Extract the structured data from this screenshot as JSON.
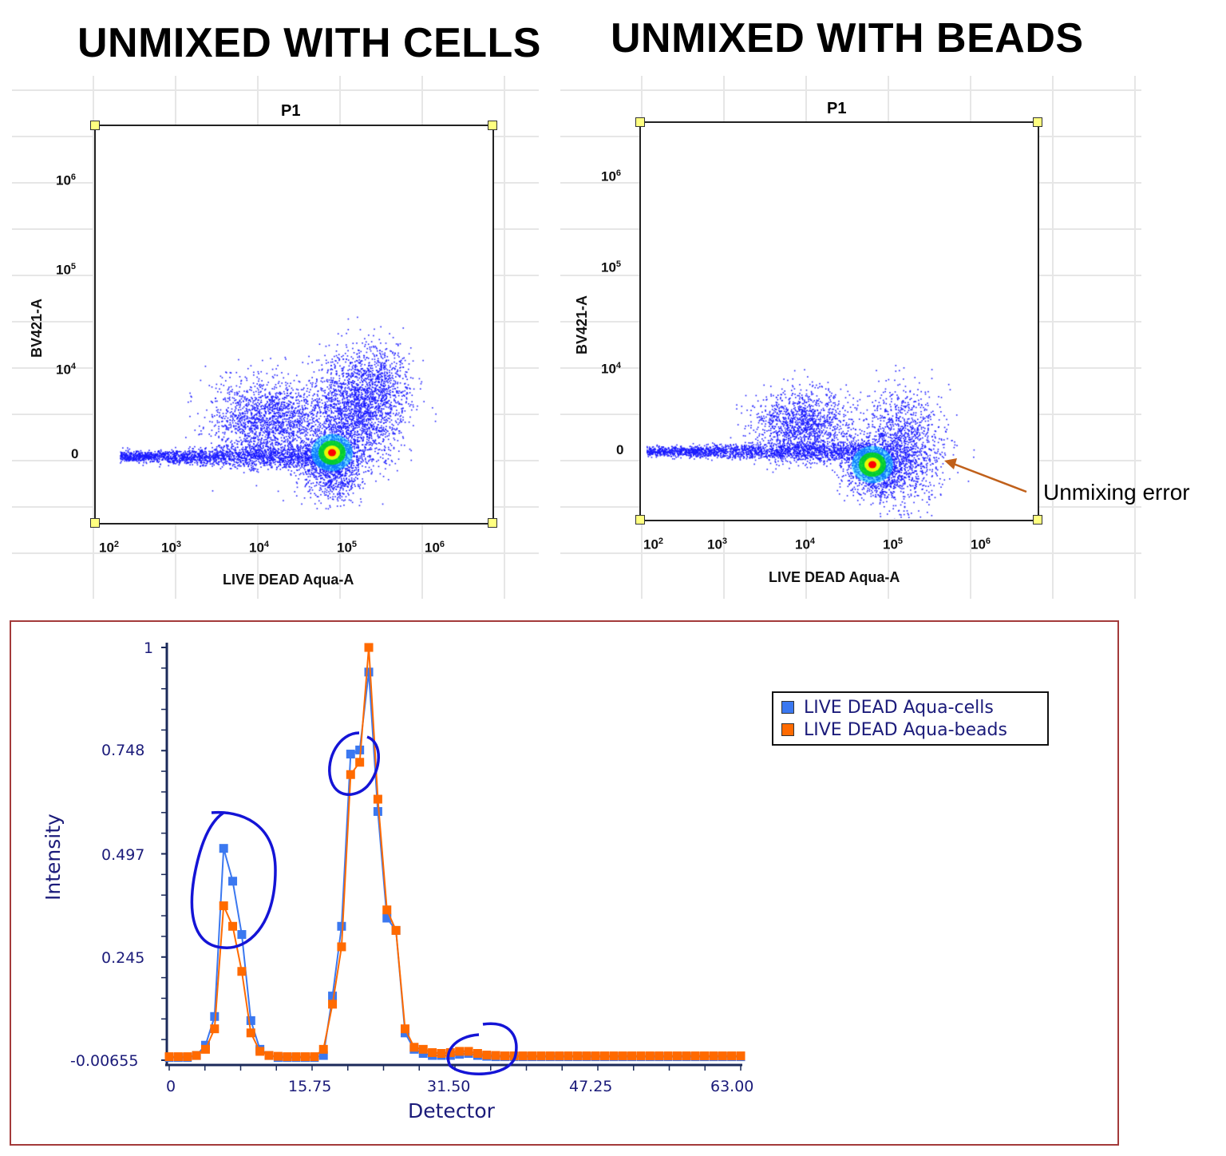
{
  "titles": {
    "left": "UNMIXED WITH CELLS",
    "right": "UNMIXED WITH BEADS"
  },
  "chart_data": [
    {
      "type": "scatter",
      "panel": "cells",
      "gate": "P1",
      "xlabel": "LIVE DEAD Aqua-A",
      "ylabel": "BV421-A",
      "xscale": "biexponential",
      "yscale": "biexponential",
      "xticks": [
        {
          "base": "10",
          "exp": "2"
        },
        {
          "base": "10",
          "exp": "3"
        },
        {
          "base": "10",
          "exp": "4"
        },
        {
          "base": "10",
          "exp": "5"
        },
        {
          "base": "10",
          "exp": "6"
        }
      ],
      "yticks": [
        {
          "base": "10",
          "exp": "6"
        },
        {
          "base": "10",
          "exp": "5"
        },
        {
          "base": "10",
          "exp": "4"
        },
        {
          "base": "",
          "exp": "",
          "label": "0"
        }
      ],
      "density_peak": {
        "x": 65000,
        "y": 0
      },
      "colormap": [
        "#0000ff",
        "#00c8ff",
        "#00e000",
        "#ffff00",
        "#ff0000"
      ]
    },
    {
      "type": "scatter",
      "panel": "beads",
      "gate": "P1",
      "xlabel": "LIVE DEAD Aqua-A",
      "ylabel": "BV421-A",
      "xscale": "biexponential",
      "yscale": "biexponential",
      "xticks": [
        {
          "base": "10",
          "exp": "2"
        },
        {
          "base": "10",
          "exp": "3"
        },
        {
          "base": "10",
          "exp": "4"
        },
        {
          "base": "10",
          "exp": "5"
        },
        {
          "base": "10",
          "exp": "6"
        }
      ],
      "yticks": [
        {
          "base": "10",
          "exp": "6"
        },
        {
          "base": "10",
          "exp": "5"
        },
        {
          "base": "10",
          "exp": "4"
        },
        {
          "base": "",
          "exp": "",
          "label": "0"
        }
      ],
      "density_peak": {
        "x": 55000,
        "y": -300
      },
      "annotation": {
        "text": "Unmixing error",
        "color": "#c0601a"
      }
    },
    {
      "type": "line",
      "xlabel": "Detector",
      "ylabel": "Intensity",
      "xlim": [
        0,
        63
      ],
      "ylim": [
        -0.00655,
        1
      ],
      "xtick_labels": [
        "0",
        "15.75",
        "31.50",
        "47.25",
        "63.00"
      ],
      "ytick_labels": [
        "1",
        "0.748",
        "0.497",
        "0.245",
        "-0.00655"
      ],
      "legend_position": "right",
      "series": [
        {
          "name": "LIVE DEAD Aqua-cells",
          "color": "#3b78f0",
          "values": [
            0,
            0,
            0,
            0.005,
            0.03,
            0.1,
            0.51,
            0.43,
            0.3,
            0.09,
            0.02,
            0.005,
            0,
            0,
            0,
            0,
            0,
            0.005,
            0.15,
            0.32,
            0.74,
            0.75,
            0.94,
            0.6,
            0.34,
            0.31,
            0.06,
            0.02,
            0.01,
            0.005,
            0.005,
            0.005,
            0.008,
            0.01,
            0.005,
            0.003,
            0.002,
            0.002,
            0.002,
            0.002,
            0.002,
            0.002,
            0.002,
            0.002,
            0.002,
            0.002,
            0.002,
            0.002,
            0.002,
            0.002,
            0.002,
            0.002,
            0.002,
            0.002,
            0.002,
            0.002,
            0.002,
            0.002,
            0.002,
            0.002,
            0.002,
            0.002,
            0.002,
            0.002
          ]
        },
        {
          "name": "LIVE DEAD Aqua-beads",
          "color": "#ff6a00",
          "values": [
            0.002,
            0.002,
            0.002,
            0.005,
            0.02,
            0.07,
            0.37,
            0.32,
            0.21,
            0.06,
            0.015,
            0.005,
            0.003,
            0.002,
            0.002,
            0.002,
            0.002,
            0.02,
            0.13,
            0.27,
            0.69,
            0.72,
            1.0,
            0.63,
            0.36,
            0.31,
            0.07,
            0.025,
            0.02,
            0.012,
            0.01,
            0.012,
            0.015,
            0.015,
            0.01,
            0.006,
            0.005,
            0.004,
            0.004,
            0.004,
            0.004,
            0.004,
            0.004,
            0.004,
            0.004,
            0.004,
            0.004,
            0.004,
            0.004,
            0.004,
            0.004,
            0.004,
            0.004,
            0.004,
            0.004,
            0.004,
            0.004,
            0.004,
            0.004,
            0.004,
            0.004,
            0.004,
            0.004,
            0.004
          ]
        }
      ],
      "highlights": [
        "detector 6-8 (cells higher)",
        "detector 20-21 (cells higher)",
        "detector 31-35"
      ]
    }
  ]
}
